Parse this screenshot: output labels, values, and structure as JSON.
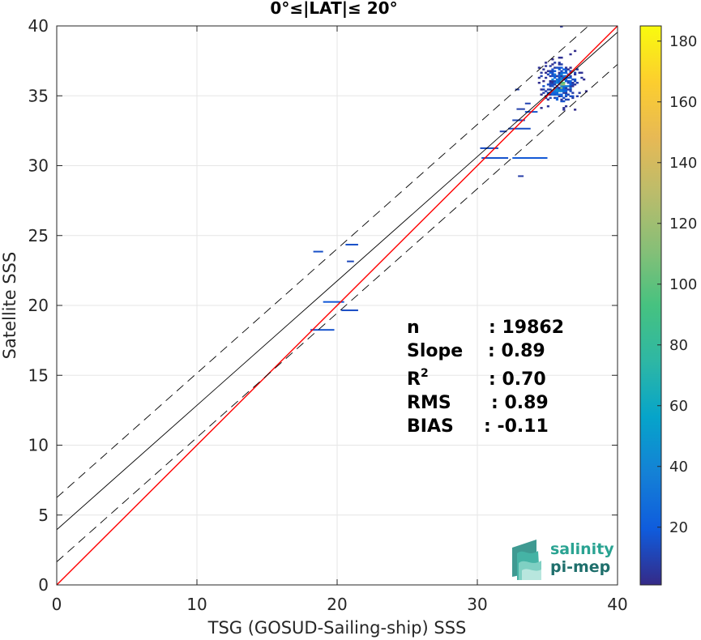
{
  "chart_data": {
    "type": "scatter",
    "subtype": "density-histogram-2d",
    "title": "0°≤|LAT|≤ 20°",
    "xlabel": "TSG (GOSUD-Sailing-ship) SSS",
    "ylabel": "Satellite SSS",
    "xlim": [
      0,
      40
    ],
    "ylim": [
      0,
      40
    ],
    "xticks": [
      0,
      10,
      20,
      30,
      40
    ],
    "yticks": [
      0,
      5,
      10,
      15,
      20,
      25,
      30,
      35,
      40
    ],
    "grid": true,
    "colorbar": {
      "range": [
        1,
        185
      ],
      "ticks": [
        20,
        40,
        60,
        80,
        100,
        120,
        140,
        160,
        180
      ],
      "colormap": "parula"
    },
    "lines": [
      {
        "style": "identity",
        "color": "#ff0000",
        "x": [
          0,
          40
        ],
        "y": [
          0,
          40
        ]
      },
      {
        "style": "regression",
        "color": "#000000",
        "x": [
          0,
          40
        ],
        "y": [
          3.95,
          39.55
        ]
      },
      {
        "style": "regression+offset",
        "color": "#000000",
        "dash": true,
        "x": [
          0,
          40
        ],
        "y": [
          6.25,
          41.85
        ]
      },
      {
        "style": "regression-offset",
        "color": "#000000",
        "dash": true,
        "x": [
          0,
          40
        ],
        "y": [
          1.65,
          37.25
        ]
      }
    ],
    "stats": {
      "n_label": "n",
      "n_value": ": 19862",
      "slope_label": "Slope",
      "slope_value": ": 0.89",
      "r2_label": "R",
      "r2_sup": "2",
      "r2_value": ": 0.70",
      "rms_label": "RMS",
      "rms_value": ": 0.89",
      "bias_label": "BIAS",
      "bias_value": ": -0.11"
    },
    "sparse_points": [
      {
        "x": 18.3,
        "x2": 19.0,
        "y": 23.85,
        "count": 15
      },
      {
        "x": 20.6,
        "x2": 21.5,
        "y": 24.35,
        "count": 15
      },
      {
        "x": 20.7,
        "x2": 21.2,
        "y": 23.15,
        "count": 12
      },
      {
        "x": 19.0,
        "x2": 20.5,
        "y": 20.25,
        "count": 18
      },
      {
        "x": 20.3,
        "x2": 21.5,
        "y": 19.65,
        "count": 14
      },
      {
        "x": 18.1,
        "x2": 19.8,
        "y": 18.25,
        "count": 16
      },
      {
        "x": 30.2,
        "x2": 31.5,
        "y": 31.25,
        "count": 14
      },
      {
        "x": 30.3,
        "x2": 32.2,
        "y": 30.55,
        "count": 16
      },
      {
        "x": 32.5,
        "x2": 35.0,
        "y": 30.55,
        "count": 18
      },
      {
        "x": 32.9,
        "x2": 33.3,
        "y": 29.25,
        "count": 8
      },
      {
        "x": 31.6,
        "x2": 32.1,
        "y": 32.45,
        "count": 10
      },
      {
        "x": 32.2,
        "x2": 33.8,
        "y": 32.65,
        "count": 14
      },
      {
        "x": 32.5,
        "x2": 33.4,
        "y": 33.25,
        "count": 12
      },
      {
        "x": 33.4,
        "x2": 34.3,
        "y": 33.85,
        "count": 16
      },
      {
        "x": 33.4,
        "x2": 33.8,
        "y": 34.45,
        "count": 10
      },
      {
        "x": 32.8,
        "x2": 33.4,
        "y": 34.05,
        "count": 9
      },
      {
        "x": 35.9,
        "x2": 36.1,
        "y": 39.95,
        "count": 6
      },
      {
        "x": 32.7,
        "x2": 33.0,
        "y": 35.45,
        "count": 9
      }
    ],
    "dense_cluster": {
      "x_range": [
        34.0,
        37.8
      ],
      "y_range": [
        33.0,
        38.6
      ],
      "center": [
        35.8,
        35.8
      ],
      "peak_count": 185
    }
  },
  "logo": {
    "line1": "salinity",
    "line2": "pi-mep"
  }
}
